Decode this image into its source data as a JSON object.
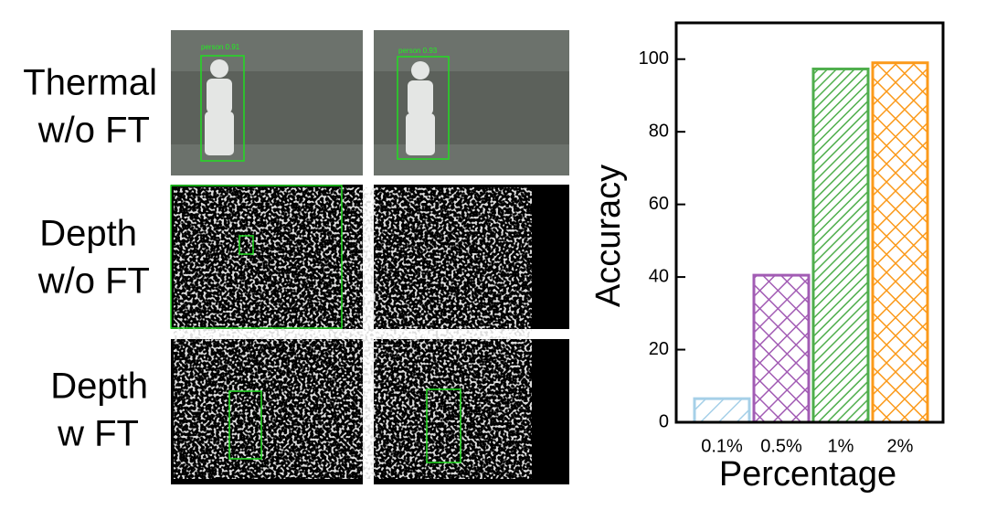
{
  "figure": {
    "rows": [
      {
        "label": [
          "Thermal",
          "w/o FT"
        ]
      },
      {
        "label": [
          "Depth",
          "w/o FT"
        ]
      },
      {
        "label": [
          "Depth",
          "w FT"
        ]
      }
    ],
    "detections": [
      "person 0.91",
      "person 0.93"
    ]
  },
  "chart_data": {
    "type": "bar",
    "x_label": "Percentage",
    "y_label": "Accuracy",
    "categories": [
      "0.1%",
      "0.5%",
      "1%",
      "2%"
    ],
    "values": [
      6.5,
      40.5,
      97.3,
      99
    ],
    "colors": [
      "#a6d0e8",
      "#a25cb4",
      "#4fae4c",
      "#fb9a1b"
    ],
    "hatches": [
      "diagonal",
      "cross",
      "dense-diagonal",
      "cross"
    ],
    "ylim": [
      0,
      110
    ],
    "yticks": [
      0,
      20,
      40,
      60,
      80,
      100
    ]
  }
}
